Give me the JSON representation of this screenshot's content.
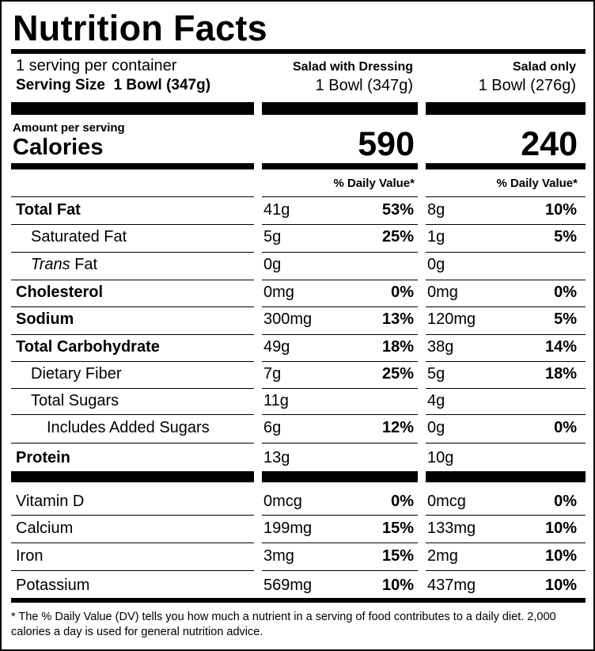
{
  "title": "Nutrition Facts",
  "servings_per_container": "1 serving per container",
  "serving_size": {
    "label": "Serving Size",
    "value": "1 Bowl (347g)"
  },
  "columns": [
    {
      "heading": "Salad with Dressing",
      "size": "1 Bowl (347g)",
      "calories": "590"
    },
    {
      "heading": "Salad only",
      "size": "1 Bowl (276g)",
      "calories": "240"
    }
  ],
  "amount_per_serving": "Amount per serving",
  "calories_label": "Calories",
  "daily_value_heading": "% Daily Value*",
  "nutrients": [
    {
      "name": "Total Fat",
      "bold": true,
      "indent": 0,
      "v1": "41g",
      "p1": "53%",
      "v2": "8g",
      "p2": "10%"
    },
    {
      "name": "Saturated Fat",
      "bold": false,
      "indent": 1,
      "v1": "5g",
      "p1": "25%",
      "v2": "1g",
      "p2": "5%"
    },
    {
      "name_italic": "Trans",
      "name": " Fat",
      "bold": false,
      "indent": 1,
      "v1": "0g",
      "p1": "",
      "v2": "0g",
      "p2": ""
    },
    {
      "name": "Cholesterol",
      "bold": true,
      "indent": 0,
      "v1": "0mg",
      "p1": "0%",
      "v2": "0mg",
      "p2": "0%"
    },
    {
      "name": "Sodium",
      "bold": true,
      "indent": 0,
      "v1": "300mg",
      "p1": "13%",
      "v2": "120mg",
      "p2": "5%"
    },
    {
      "name": "Total Carbohydrate",
      "bold": true,
      "indent": 0,
      "v1": "49g",
      "p1": "18%",
      "v2": "38g",
      "p2": "14%"
    },
    {
      "name": "Dietary Fiber",
      "bold": false,
      "indent": 1,
      "v1": "7g",
      "p1": "25%",
      "v2": "5g",
      "p2": "18%"
    },
    {
      "name": "Total Sugars",
      "bold": false,
      "indent": 1,
      "v1": "11g",
      "p1": "",
      "v2": "4g",
      "p2": ""
    },
    {
      "name": "Includes Added Sugars",
      "bold": false,
      "indent": 2,
      "v1": "6g",
      "p1": "12%",
      "v2": "0g",
      "p2": "0%"
    },
    {
      "name": "Protein",
      "bold": true,
      "indent": 0,
      "v1": "13g",
      "p1": "",
      "v2": "10g",
      "p2": ""
    }
  ],
  "vitamins": [
    {
      "name": "Vitamin D",
      "v1": "0mcg",
      "p1": "0%",
      "v2": "0mcg",
      "p2": "0%"
    },
    {
      "name": "Calcium",
      "v1": "199mg",
      "p1": "15%",
      "v2": "133mg",
      "p2": "10%"
    },
    {
      "name": "Iron",
      "v1": "3mg",
      "p1": "15%",
      "v2": "2mg",
      "p2": "10%"
    },
    {
      "name": "Potassium",
      "v1": "569mg",
      "p1": "10%",
      "v2": "437mg",
      "p2": "10%"
    }
  ],
  "footnote": "* The % Daily Value (DV) tells you how much a nutrient in a serving of food contributes to a daily diet. 2,000 calories a day is used for general nutrition advice."
}
